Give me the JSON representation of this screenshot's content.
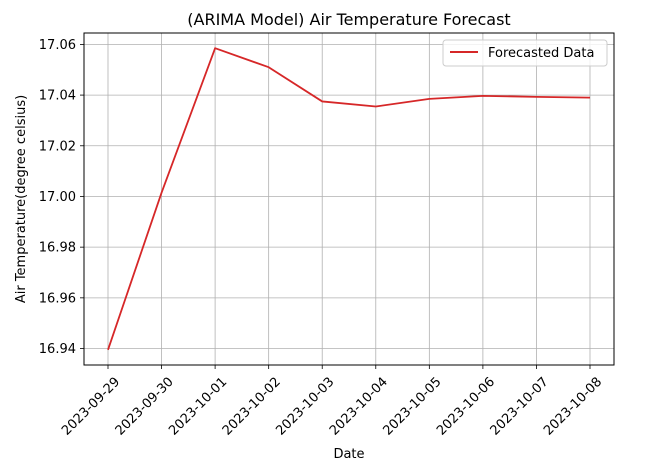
{
  "chart_data": {
    "type": "line",
    "title": "(ARIMA Model) Air Temperature Forecast",
    "xlabel": "Date",
    "ylabel": "Air Temperature(degree celsius)",
    "x": [
      "2023-09-29",
      "2023-09-30",
      "2023-10-01",
      "2023-10-02",
      "2023-10-03",
      "2023-10-04",
      "2023-10-05",
      "2023-10-06",
      "2023-10-07",
      "2023-10-08"
    ],
    "series": [
      {
        "name": "Forecasted Data",
        "color": "#d62728",
        "values": [
          16.9395,
          17.0015,
          17.0585,
          17.051,
          17.0375,
          17.0355,
          17.0385,
          17.0397,
          17.0393,
          17.039
        ]
      }
    ],
    "yticks": [
      "16.94",
      "16.96",
      "16.98",
      "17.00",
      "17.02",
      "17.04",
      "17.06"
    ],
    "ylim": [
      16.9335,
      17.0645
    ],
    "grid": true,
    "legend_position": "top-right"
  }
}
